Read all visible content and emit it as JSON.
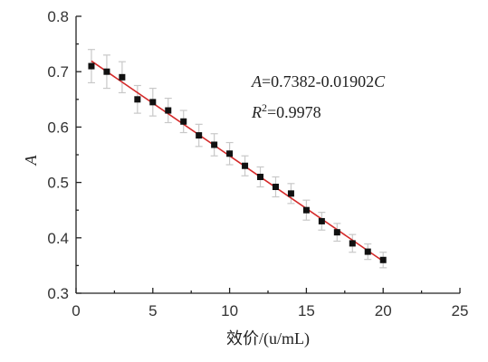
{
  "chart_data": {
    "type": "scatter",
    "title": "",
    "xlabel": "效价/(u/mL)",
    "ylabel": "A",
    "xlim": [
      0,
      25
    ],
    "ylim": [
      0.3,
      0.8
    ],
    "xticks": [
      "0",
      "5",
      "10",
      "15",
      "20",
      "25"
    ],
    "yticks": [
      "0.3",
      "0.4",
      "0.5",
      "0.6",
      "0.7",
      "0.8"
    ],
    "colors": {
      "points": "#111111",
      "fit": "#d42a2a",
      "error_bars": "#c8c8c8"
    },
    "series": [
      {
        "x": [
          1,
          2,
          3,
          4,
          5,
          6,
          7,
          8,
          9,
          10,
          11,
          12,
          13,
          14,
          15,
          16,
          17,
          18,
          19,
          20
        ],
        "y": [
          0.71,
          0.7,
          0.69,
          0.65,
          0.645,
          0.63,
          0.61,
          0.585,
          0.568,
          0.552,
          0.53,
          0.51,
          0.492,
          0.48,
          0.45,
          0.43,
          0.41,
          0.39,
          0.375,
          0.36
        ],
        "error": [
          0.03,
          0.03,
          0.028,
          0.025,
          0.025,
          0.022,
          0.02,
          0.02,
          0.02,
          0.02,
          0.018,
          0.018,
          0.018,
          0.018,
          0.018,
          0.016,
          0.016,
          0.016,
          0.014,
          0.014
        ]
      }
    ],
    "fit": {
      "intercept": 0.7382,
      "slope": -0.01902,
      "x_range": [
        1,
        20
      ]
    },
    "annotations": {
      "equation": {
        "var_a": "A",
        "eq_rest": "=0.7382-0.01902",
        "var_c": "C"
      },
      "r_squared": {
        "var_r": "R",
        "sup": "2",
        "rest": "=0.9978"
      }
    }
  }
}
